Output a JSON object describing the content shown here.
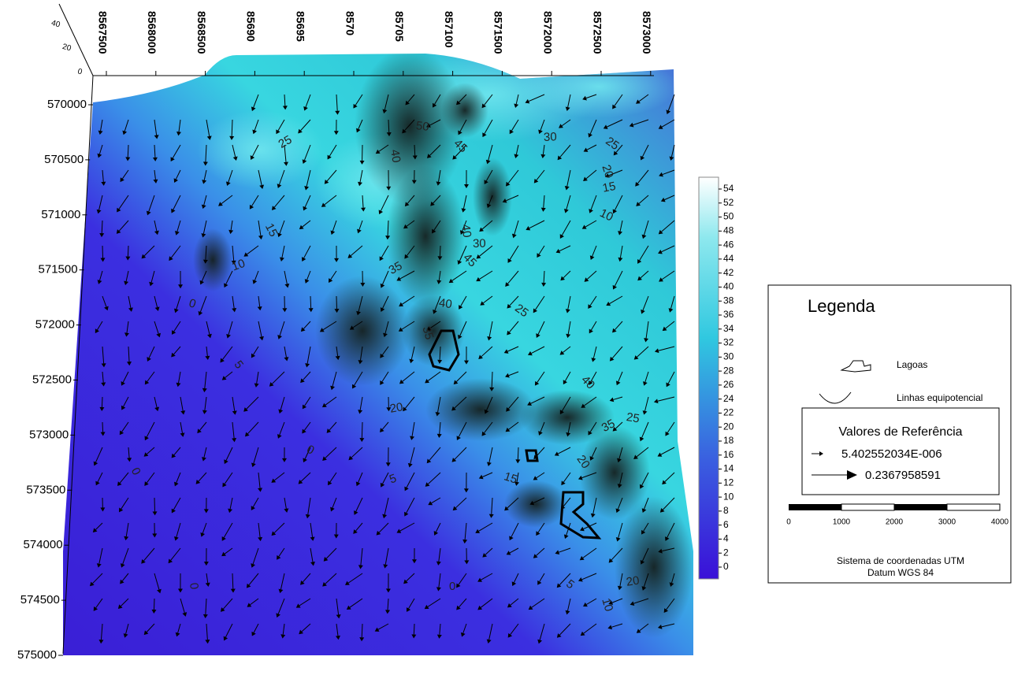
{
  "map": {
    "x_ticks": [
      "8567500",
      "8568000",
      "8568500",
      "85690",
      "85695",
      "8570",
      "85705",
      "857100",
      "8571500",
      "8572000",
      "8572500",
      "8573000"
    ],
    "y_ticks": [
      "570000",
      "570500",
      "571000",
      "571500",
      "572000",
      "572500",
      "573000",
      "573500",
      "574000",
      "574500",
      "575000"
    ],
    "z_ticks": [
      "0",
      "20",
      "40"
    ],
    "colorbar_ticks": [
      0,
      2,
      4,
      6,
      8,
      10,
      12,
      14,
      16,
      18,
      20,
      22,
      24,
      26,
      28,
      30,
      32,
      34,
      36,
      38,
      40,
      42,
      44,
      46,
      48,
      50,
      52,
      54
    ],
    "contour_labels": [
      "25",
      "50",
      "45",
      "40",
      "30",
      "25",
      "20",
      "15",
      "10",
      "15",
      "10",
      "0",
      "5",
      "35",
      "40",
      "45",
      "40",
      "30",
      "25",
      "35",
      "20",
      "0",
      "0",
      "5",
      "15",
      "20",
      "35",
      "25",
      "40",
      "0",
      "0",
      "5",
      "10",
      "20"
    ]
  },
  "legend": {
    "title": "Legenda",
    "lakes": "Lagoas",
    "lines": "Linhas equipotencial",
    "reference_title": "Valores de Referência",
    "reference_min": "5.402552034E-006",
    "reference_max": "0.2367958591",
    "scale_ticks": [
      "0",
      "1000",
      "2000",
      "3000",
      "4000"
    ],
    "coordinate_system": "Sistema de coordenadas UTM",
    "datum": "Datum WGS 84"
  }
}
